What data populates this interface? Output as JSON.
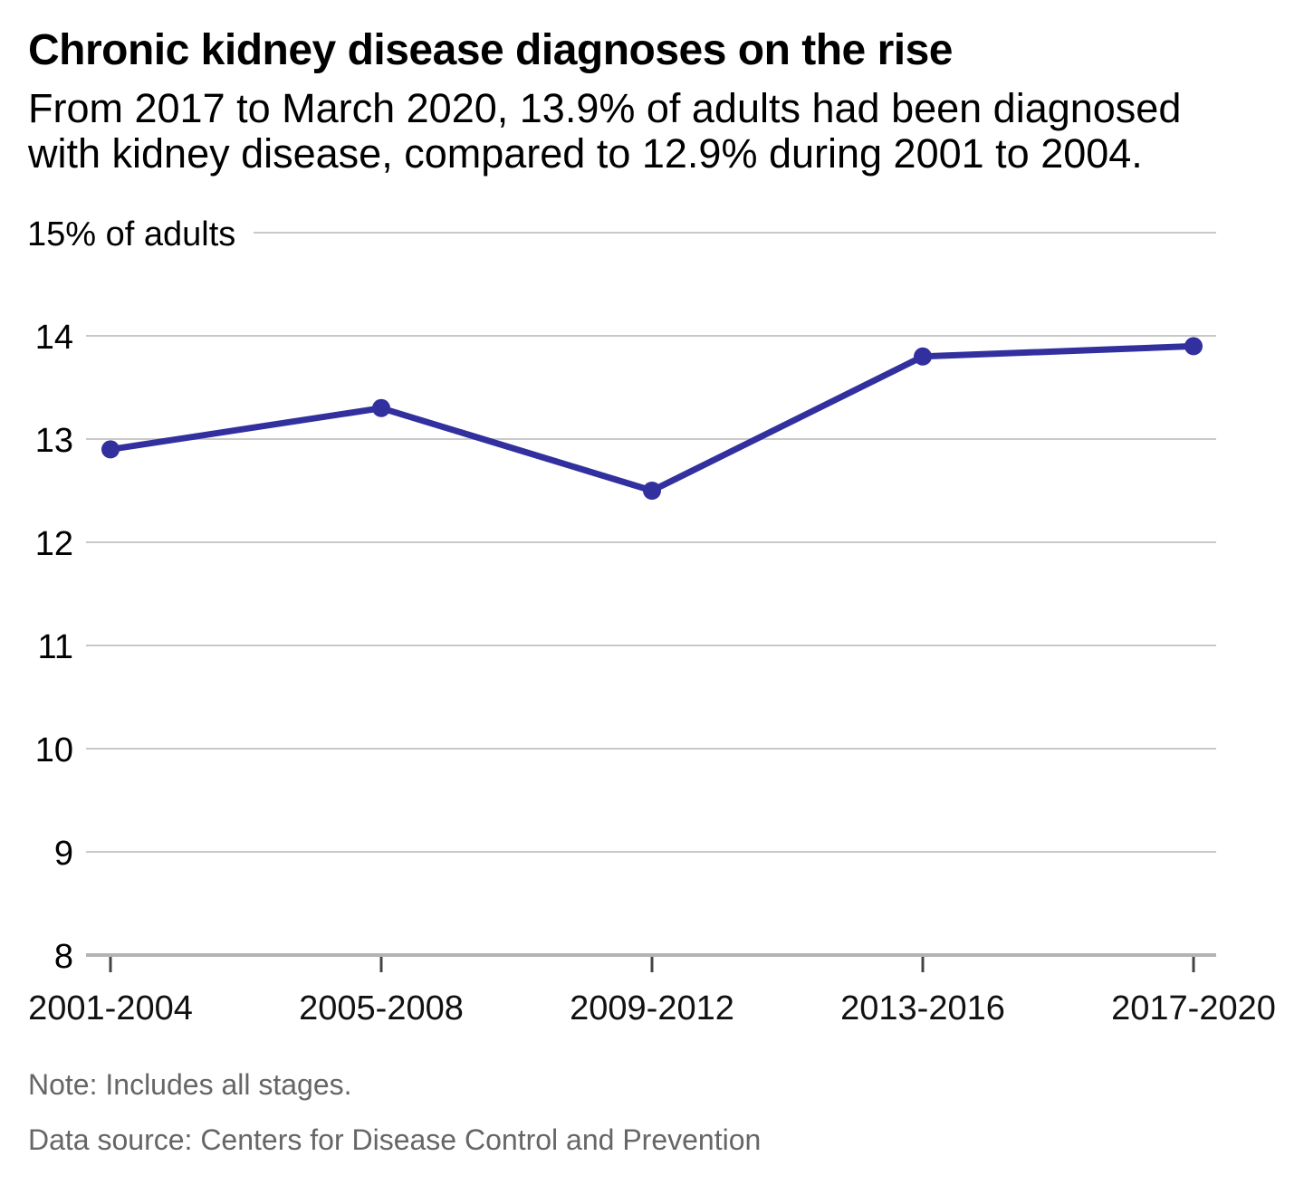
{
  "header": {
    "title": "Chronic kidney disease diagnoses on the rise",
    "subtitle": "From 2017 to March 2020, 13.9% of adults had been diagnosed with kidney disease, compared to 12.9% during 2001 to 2004."
  },
  "chart_data": {
    "type": "line",
    "title": "Chronic kidney disease diagnoses on the rise",
    "categories": [
      "2001-2004",
      "2005-2008",
      "2009-2012",
      "2013-2016",
      "2017-2020"
    ],
    "values": [
      12.9,
      13.3,
      12.5,
      13.8,
      13.9
    ],
    "xlabel": "",
    "ylabel": "% of adults",
    "y_axis": {
      "top_tick_label": "15% of adults",
      "tick_values": [
        15,
        14,
        13,
        12,
        11,
        10,
        9,
        8
      ],
      "ylim": [
        8,
        15
      ]
    },
    "grid": "horizontal",
    "legend": "none",
    "line_color": "#32309f",
    "gridline_color": "#c9c9c9",
    "axis_line_color": "#b3b3b3",
    "tick_mark_color": "#444444"
  },
  "footer": {
    "note": "Note: Includes all stages.",
    "source": "Data source: Centers for Disease Control and Prevention"
  }
}
